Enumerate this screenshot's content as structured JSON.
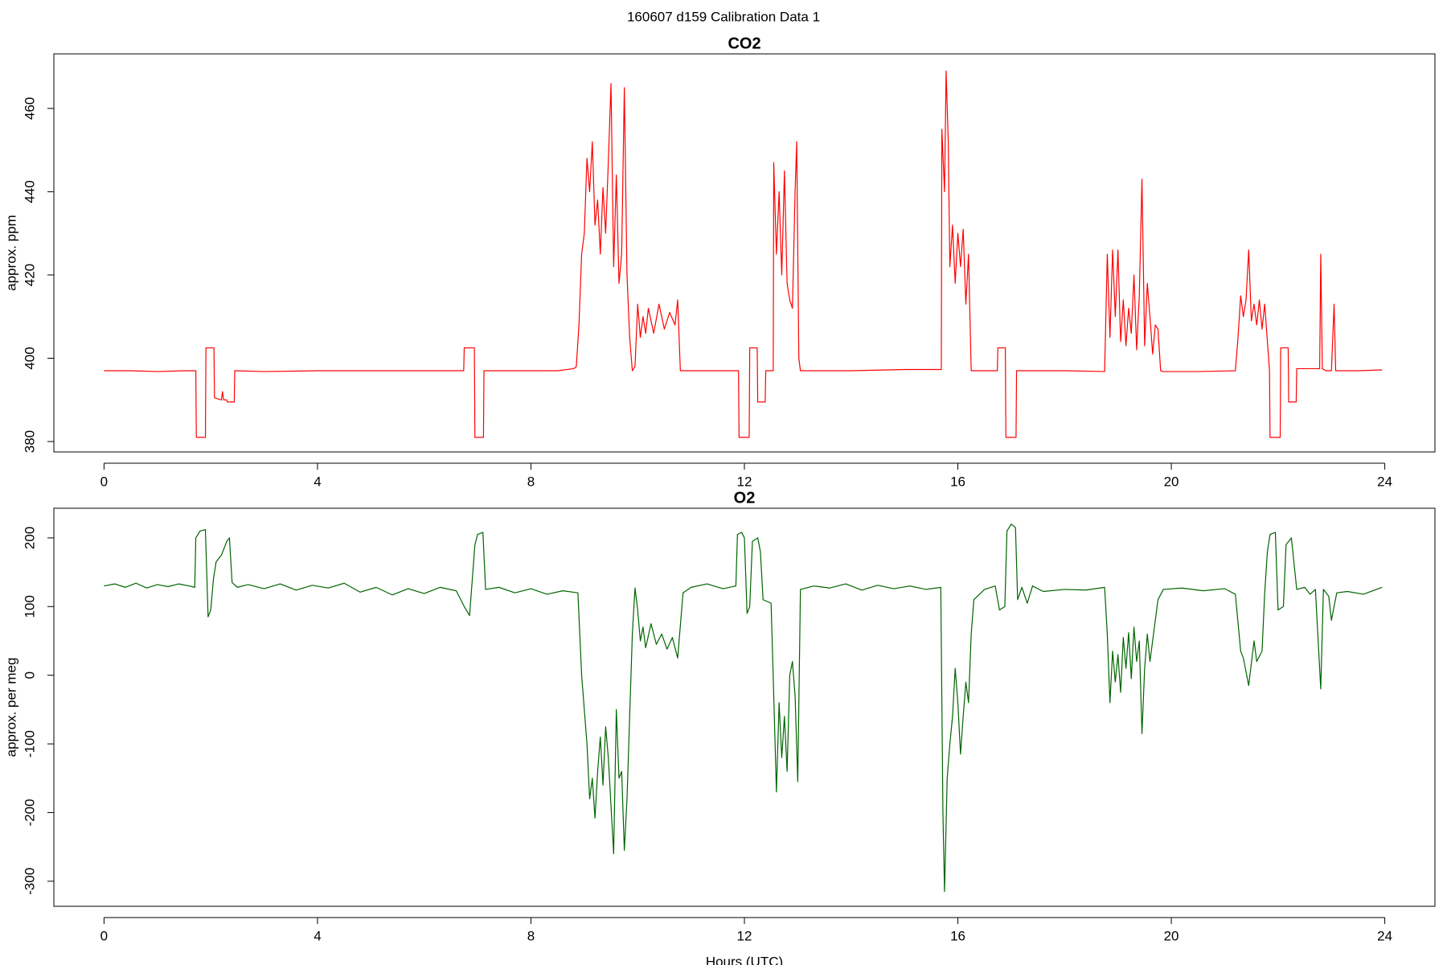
{
  "title": "160607   d159   Calibration Data 1",
  "chart_data": [
    {
      "type": "line",
      "title": "CO2",
      "y_label": "approx. ppm",
      "x": [
        0,
        0.5,
        1.0,
        1.5,
        1.72,
        1.73,
        1.9,
        1.91,
        2.06,
        2.07,
        2.2,
        2.22,
        2.24,
        2.3,
        2.31,
        2.44,
        2.45,
        3,
        4,
        5,
        6,
        6.74,
        6.75,
        6.94,
        6.95,
        7.11,
        7.12,
        8,
        8.5,
        8.8,
        8.85,
        8.9,
        8.95,
        9.0,
        9.05,
        9.1,
        9.15,
        9.2,
        9.25,
        9.3,
        9.35,
        9.4,
        9.45,
        9.5,
        9.55,
        9.6,
        9.65,
        9.7,
        9.75,
        9.8,
        9.85,
        9.9,
        9.95,
        10.0,
        10.05,
        10.1,
        10.15,
        10.2,
        10.3,
        10.4,
        10.5,
        10.6,
        10.7,
        10.75,
        10.8,
        11.5,
        11.89,
        11.9,
        12.09,
        12.1,
        12.24,
        12.25,
        12.39,
        12.4,
        12.54,
        12.55,
        12.6,
        12.65,
        12.7,
        12.75,
        12.8,
        12.85,
        12.9,
        12.95,
        12.98,
        13.02,
        13.05,
        14,
        15,
        15.69,
        15.7,
        15.75,
        15.78,
        15.82,
        15.85,
        15.9,
        15.95,
        16.0,
        16.05,
        16.1,
        16.15,
        16.2,
        16.25,
        16.3,
        16.74,
        16.75,
        16.89,
        16.9,
        17.09,
        17.1,
        18,
        18.75,
        18.8,
        18.85,
        18.9,
        18.95,
        19.0,
        19.05,
        19.1,
        19.15,
        19.2,
        19.25,
        19.3,
        19.35,
        19.4,
        19.45,
        19.5,
        19.55,
        19.6,
        19.65,
        19.7,
        19.75,
        19.8,
        19.85,
        20.5,
        21.2,
        21.25,
        21.3,
        21.35,
        21.4,
        21.45,
        21.5,
        21.55,
        21.6,
        21.65,
        21.7,
        21.75,
        21.84,
        21.85,
        22.04,
        22.05,
        22.19,
        22.2,
        22.34,
        22.35,
        22.5,
        22.78,
        22.8,
        22.83,
        22.9,
        23.0,
        23.05,
        23.08,
        23.5,
        23.95
      ],
      "series": [
        {
          "color": "#ff0000",
          "values": [
            397,
            397,
            396.8,
            397,
            397,
            381,
            381,
            402.5,
            402.5,
            390.5,
            390,
            392,
            390,
            390,
            389.5,
            389.5,
            397,
            396.8,
            397,
            397,
            397,
            397,
            402.5,
            402.5,
            381,
            381,
            397,
            397,
            397,
            397.5,
            398,
            408,
            425,
            430,
            448,
            440,
            452,
            432,
            438,
            425,
            441,
            430,
            447,
            466,
            422,
            444,
            418,
            425,
            465,
            420,
            405,
            397,
            398,
            413,
            405,
            410,
            406,
            412,
            406,
            413,
            407,
            411,
            408,
            414,
            397,
            397,
            397,
            381,
            381,
            402.5,
            402.5,
            389.5,
            389.5,
            397,
            397,
            447,
            425,
            440,
            420,
            445,
            418,
            414,
            412,
            440,
            452,
            400,
            397,
            397,
            397.3,
            397.3,
            455,
            440,
            469,
            452,
            422,
            432,
            418,
            430,
            422,
            431,
            413,
            425,
            397,
            397,
            397,
            402.5,
            402.5,
            381,
            381,
            397,
            397,
            396.8,
            425,
            405,
            426,
            410,
            426,
            404,
            414,
            403,
            412,
            406,
            420,
            402,
            415,
            443,
            403,
            418,
            410,
            401,
            408,
            407,
            397,
            396.8,
            396.8,
            397,
            405,
            415,
            410,
            414,
            426,
            409,
            413,
            408,
            414,
            407,
            413,
            397,
            381,
            381,
            402.5,
            402.5,
            389.5,
            389.5,
            397.5,
            397.5,
            397.5,
            425,
            397.5,
            397,
            397,
            413,
            397,
            397,
            397.2
          ]
        }
      ],
      "xlim": [
        -0.94,
        24.94
      ],
      "ylim": [
        377.5,
        473.1
      ],
      "xticks": [
        0,
        4,
        8,
        12,
        16,
        20,
        24
      ],
      "yticks": [
        380,
        400,
        420,
        440,
        460
      ]
    },
    {
      "type": "line",
      "title": "O2",
      "y_label": "approx. per meg",
      "x_label": "Hours (UTC)",
      "x": [
        0,
        0.2,
        0.4,
        0.6,
        0.8,
        1.0,
        1.2,
        1.4,
        1.6,
        1.7,
        1.72,
        1.8,
        1.9,
        1.95,
        2.0,
        2.05,
        2.1,
        2.2,
        2.3,
        2.35,
        2.4,
        2.5,
        2.7,
        3.0,
        3.3,
        3.6,
        3.9,
        4.2,
        4.5,
        4.8,
        5.1,
        5.4,
        5.7,
        6.0,
        6.3,
        6.6,
        6.75,
        6.85,
        6.95,
        7.0,
        7.1,
        7.15,
        7.4,
        7.7,
        8.0,
        8.3,
        8.6,
        8.88,
        8.95,
        9.0,
        9.05,
        9.1,
        9.15,
        9.2,
        9.25,
        9.3,
        9.35,
        9.4,
        9.45,
        9.5,
        9.55,
        9.6,
        9.65,
        9.7,
        9.75,
        9.8,
        9.85,
        9.9,
        9.95,
        10.0,
        10.05,
        10.1,
        10.15,
        10.25,
        10.35,
        10.45,
        10.55,
        10.65,
        10.75,
        10.85,
        11.0,
        11.3,
        11.6,
        11.84,
        11.87,
        11.95,
        12.0,
        12.05,
        12.1,
        12.15,
        12.25,
        12.3,
        12.35,
        12.5,
        12.55,
        12.6,
        12.65,
        12.7,
        12.75,
        12.8,
        12.85,
        12.9,
        12.95,
        13.0,
        13.05,
        13.3,
        13.6,
        13.9,
        14.2,
        14.5,
        14.8,
        15.1,
        15.4,
        15.68,
        15.72,
        15.75,
        15.8,
        15.85,
        15.9,
        15.95,
        16.0,
        16.05,
        16.1,
        16.15,
        16.2,
        16.25,
        16.3,
        16.5,
        16.7,
        16.78,
        16.88,
        16.92,
        17.0,
        17.08,
        17.12,
        17.2,
        17.3,
        17.4,
        17.6,
        18.0,
        18.4,
        18.75,
        18.8,
        18.85,
        18.9,
        18.95,
        19.0,
        19.05,
        19.1,
        19.15,
        19.2,
        19.25,
        19.3,
        19.35,
        19.4,
        19.45,
        19.5,
        19.55,
        19.6,
        19.7,
        19.75,
        19.85,
        20.2,
        20.6,
        21.0,
        21.2,
        21.3,
        21.35,
        21.45,
        21.55,
        21.6,
        21.7,
        21.75,
        21.8,
        21.85,
        21.95,
        22.0,
        22.1,
        22.15,
        22.25,
        22.35,
        22.5,
        22.6,
        22.7,
        22.8,
        22.85,
        22.95,
        23.0,
        23.1,
        23.3,
        23.6,
        23.95
      ],
      "series": [
        {
          "color": "#006400",
          "values": [
            130,
            133,
            128,
            134,
            127,
            132,
            129,
            133,
            130,
            128,
            200,
            210,
            212,
            85,
            95,
            140,
            165,
            175,
            195,
            200,
            135,
            128,
            132,
            126,
            133,
            124,
            131,
            127,
            134,
            121,
            128,
            117,
            126,
            119,
            128,
            123,
            100,
            87,
            190,
            205,
            208,
            125,
            128,
            120,
            126,
            118,
            123,
            120,
            0,
            -50,
            -100,
            -180,
            -150,
            -208,
            -140,
            -90,
            -160,
            -75,
            -120,
            -190,
            -260,
            -50,
            -150,
            -140,
            -255,
            -180,
            -60,
            60,
            127,
            95,
            50,
            70,
            40,
            75,
            45,
            60,
            38,
            55,
            25,
            120,
            128,
            133,
            126,
            130,
            205,
            208,
            200,
            90,
            100,
            195,
            200,
            180,
            110,
            105,
            -30,
            -170,
            -40,
            -120,
            -60,
            -140,
            0,
            20,
            -30,
            -155,
            125,
            130,
            127,
            133,
            124,
            131,
            126,
            130,
            125,
            128,
            -200,
            -315,
            -150,
            -100,
            -60,
            10,
            -40,
            -115,
            -60,
            -10,
            -40,
            60,
            110,
            125,
            130,
            95,
            100,
            210,
            220,
            215,
            110,
            128,
            105,
            130,
            122,
            125,
            124,
            128,
            60,
            -40,
            35,
            -10,
            30,
            -25,
            55,
            10,
            62,
            -5,
            70,
            20,
            50,
            -85,
            10,
            60,
            20,
            80,
            110,
            125,
            127,
            123,
            126,
            118,
            35,
            25,
            -15,
            50,
            20,
            35,
            120,
            180,
            205,
            208,
            95,
            100,
            190,
            200,
            125,
            128,
            118,
            125,
            -20,
            125,
            115,
            80,
            120,
            122,
            118,
            128
          ]
        }
      ],
      "xlim": [
        -0.94,
        24.94
      ],
      "ylim": [
        -336.5,
        243.2
      ],
      "xticks": [
        0,
        4,
        8,
        12,
        16,
        20,
        24
      ],
      "yticks": [
        -300,
        -200,
        -100,
        0,
        100,
        200
      ]
    }
  ]
}
